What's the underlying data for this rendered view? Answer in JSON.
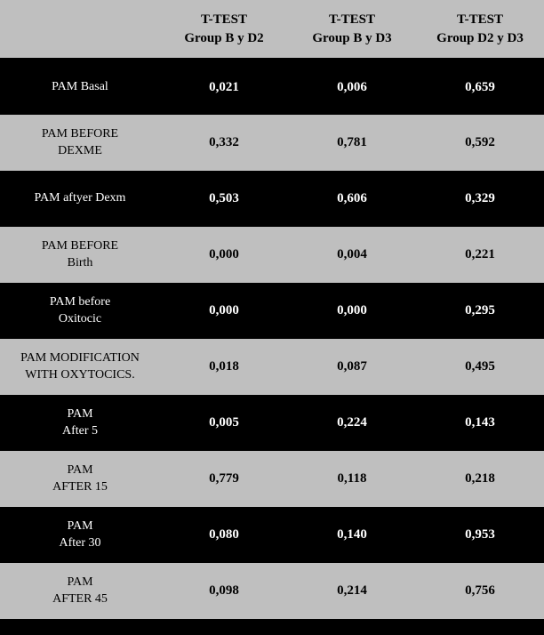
{
  "table": {
    "background_light": "#bfbfbf",
    "background_dark": "#000000",
    "text_light": "#ffffff",
    "text_dark": "#000000",
    "columns": [
      {
        "line1": "",
        "line2": ""
      },
      {
        "line1": "T-TEST",
        "line2": "Group B y D2"
      },
      {
        "line1": "T-TEST",
        "line2": "Group B y D3"
      },
      {
        "line1": "T-TEST",
        "line2": "Group D2 y D3"
      }
    ],
    "rows": [
      {
        "shade": "dark",
        "label_lines": [
          "PAM Basal"
        ],
        "values": [
          "0,021",
          "0,006",
          "0,659"
        ]
      },
      {
        "shade": "light",
        "label_lines": [
          "PAM BEFORE",
          "DEXME"
        ],
        "values": [
          "0,332",
          "0,781",
          "0,592"
        ]
      },
      {
        "shade": "dark",
        "label_lines": [
          "PAM aftyer Dexm"
        ],
        "values": [
          "0,503",
          "0,606",
          "0,329"
        ]
      },
      {
        "shade": "light",
        "label_lines": [
          "PAM BEFORE",
          "Birth"
        ],
        "values": [
          "0,000",
          "0,004",
          "0,221"
        ]
      },
      {
        "shade": "dark",
        "label_lines": [
          "PAM before",
          "Oxitocic"
        ],
        "values": [
          "0,000",
          "0,000",
          "0,295"
        ]
      },
      {
        "shade": "light",
        "label_lines": [
          "PAM MODIFICATION",
          "WITH OXYTOCICS."
        ],
        "values": [
          "0,018",
          "0,087",
          "0,495"
        ]
      },
      {
        "shade": "dark",
        "label_lines": [
          "PAM",
          "After 5"
        ],
        "values": [
          "0,005",
          "0,224",
          "0,143"
        ]
      },
      {
        "shade": "light",
        "label_lines": [
          "PAM",
          "AFTER 15"
        ],
        "values": [
          "0,779",
          "0,118",
          "0,218"
        ]
      },
      {
        "shade": "dark",
        "label_lines": [
          "PAM",
          "After 30"
        ],
        "values": [
          "0,080",
          "0,140",
          "0,953"
        ]
      },
      {
        "shade": "light",
        "label_lines": [
          "PAM",
          "AFTER 45"
        ],
        "values": [
          "0,098",
          "0,214",
          "0,756"
        ]
      }
    ]
  }
}
